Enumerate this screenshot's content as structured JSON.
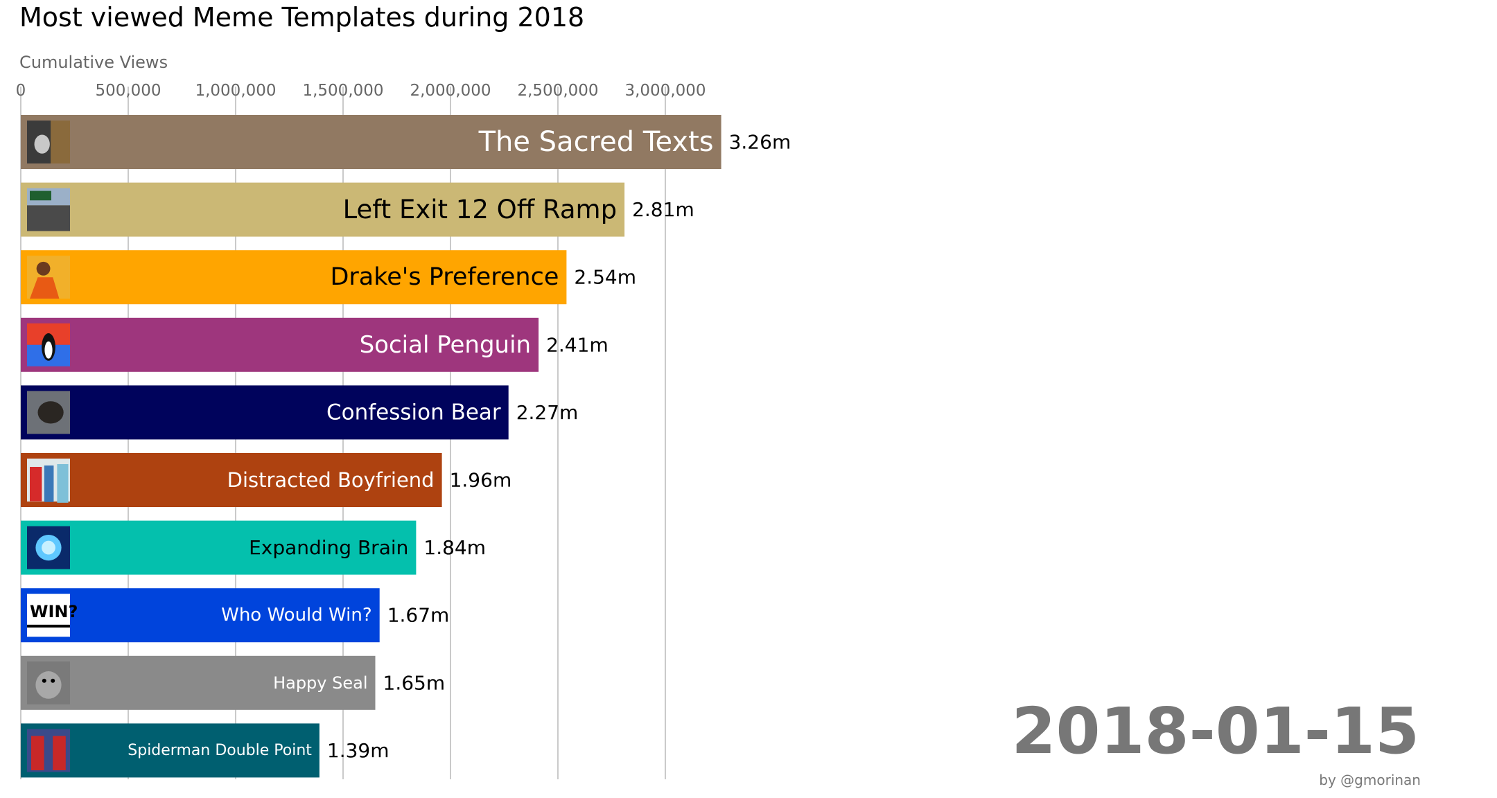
{
  "chart_data": {
    "type": "bar",
    "orientation": "horizontal",
    "title": "Most viewed Meme Templates during 2018",
    "xlabel": "Cumulative Views",
    "ylabel": "",
    "xlim": [
      0,
      3300000
    ],
    "xticks": [
      0,
      500000,
      1000000,
      1500000,
      2000000,
      2500000,
      3000000
    ],
    "xtick_labels": [
      "0",
      "500,000",
      "1,000,000",
      "1,500,000",
      "2,000,000",
      "2,500,000",
      "3,000,000"
    ],
    "grid": "vertical",
    "date": "2018-01-15",
    "credit": "by @gmorinan",
    "categories": [
      "The Sacred Texts",
      "Left Exit 12 Off Ramp",
      "Drake's Preference",
      "Social Penguin",
      "Confession Bear",
      "Distracted Boyfriend",
      "Expanding Brain",
      "Who Would Win?",
      "Happy Seal",
      "Spiderman Double Point"
    ],
    "values": [
      3260000,
      2810000,
      2540000,
      2410000,
      2270000,
      1960000,
      1840000,
      1670000,
      1650000,
      1390000
    ],
    "value_labels": [
      "3.26m",
      "2.81m",
      "2.54m",
      "2.41m",
      "2.27m",
      "1.96m",
      "1.84m",
      "1.67m",
      "1.65m",
      "1.39m"
    ],
    "colors": [
      "#917962",
      "#CBB875",
      "#FFA500",
      "#9E367D",
      "#00035C",
      "#AE4210",
      "#04C0AD",
      "#0044DC",
      "#8A8A8A",
      "#005F70"
    ],
    "label_colors": [
      "#FFFFFF",
      "#000000",
      "#000000",
      "#FFFFFF",
      "#FFFFFF",
      "#FFFFFF",
      "#000000",
      "#FFFFFF",
      "#FFFFFF",
      "#FFFFFF"
    ],
    "thumbnail_icons": [
      "sacred-texts-thumbnail-icon",
      "exit-ramp-thumbnail-icon",
      "drake-thumbnail-icon",
      "social-penguin-thumbnail-icon",
      "confession-bear-thumbnail-icon",
      "distracted-boyfriend-thumbnail-icon",
      "expanding-brain-thumbnail-icon",
      "who-would-win-thumbnail-icon",
      "happy-seal-thumbnail-icon",
      "spiderman-thumbnail-icon"
    ],
    "thumbnail_text": {
      "who_would_win": "WIN?"
    }
  }
}
